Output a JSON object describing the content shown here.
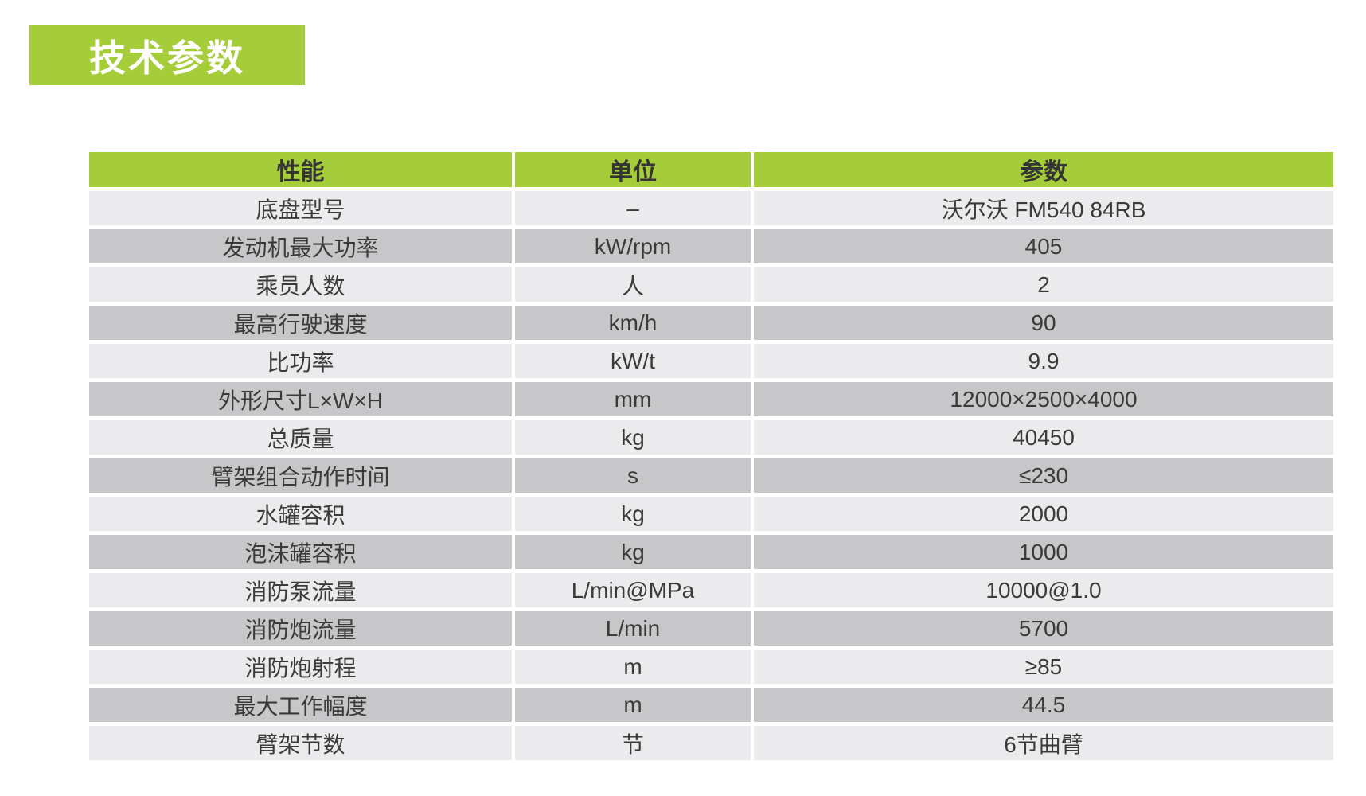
{
  "colors": {
    "green": "#a5cc39",
    "row_light": "#ebebed",
    "row_dark": "#c7c7c9",
    "header_text": "#343434",
    "body_text": "#3a3a3a",
    "badge_text": "#ffffff"
  },
  "title": {
    "label": "技术参数"
  },
  "table": {
    "header": {
      "property": "性能",
      "unit": "单位",
      "value": "参数"
    },
    "rows": [
      {
        "property": "底盘型号",
        "unit": "–",
        "value": "沃尔沃 FM540 84RB"
      },
      {
        "property": "发动机最大功率",
        "unit": "kW/rpm",
        "value": "405"
      },
      {
        "property": "乘员人数",
        "unit": "人",
        "value": "2"
      },
      {
        "property": "最高行驶速度",
        "unit": "km/h",
        "value": "90"
      },
      {
        "property": "比功率",
        "unit": "kW/t",
        "value": "9.9"
      },
      {
        "property": "外形尺寸L×W×H",
        "unit": "mm",
        "value": "12000×2500×4000"
      },
      {
        "property": "总质量",
        "unit": "kg",
        "value": "40450"
      },
      {
        "property": "臂架组合动作时间",
        "unit": "s",
        "value": "≤230"
      },
      {
        "property": "水罐容积",
        "unit": "kg",
        "value": "2000"
      },
      {
        "property": "泡沫罐容积",
        "unit": "kg",
        "value": "1000"
      },
      {
        "property": "消防泵流量",
        "unit": "L/min@MPa",
        "value": "10000@1.0"
      },
      {
        "property": "消防炮流量",
        "unit": "L/min",
        "value": "5700"
      },
      {
        "property": "消防炮射程",
        "unit": "m",
        "value": "≥85"
      },
      {
        "property": "最大工作幅度",
        "unit": "m",
        "value": "44.5"
      },
      {
        "property": "臂架节数",
        "unit": "节",
        "value": "6节曲臂"
      }
    ]
  }
}
